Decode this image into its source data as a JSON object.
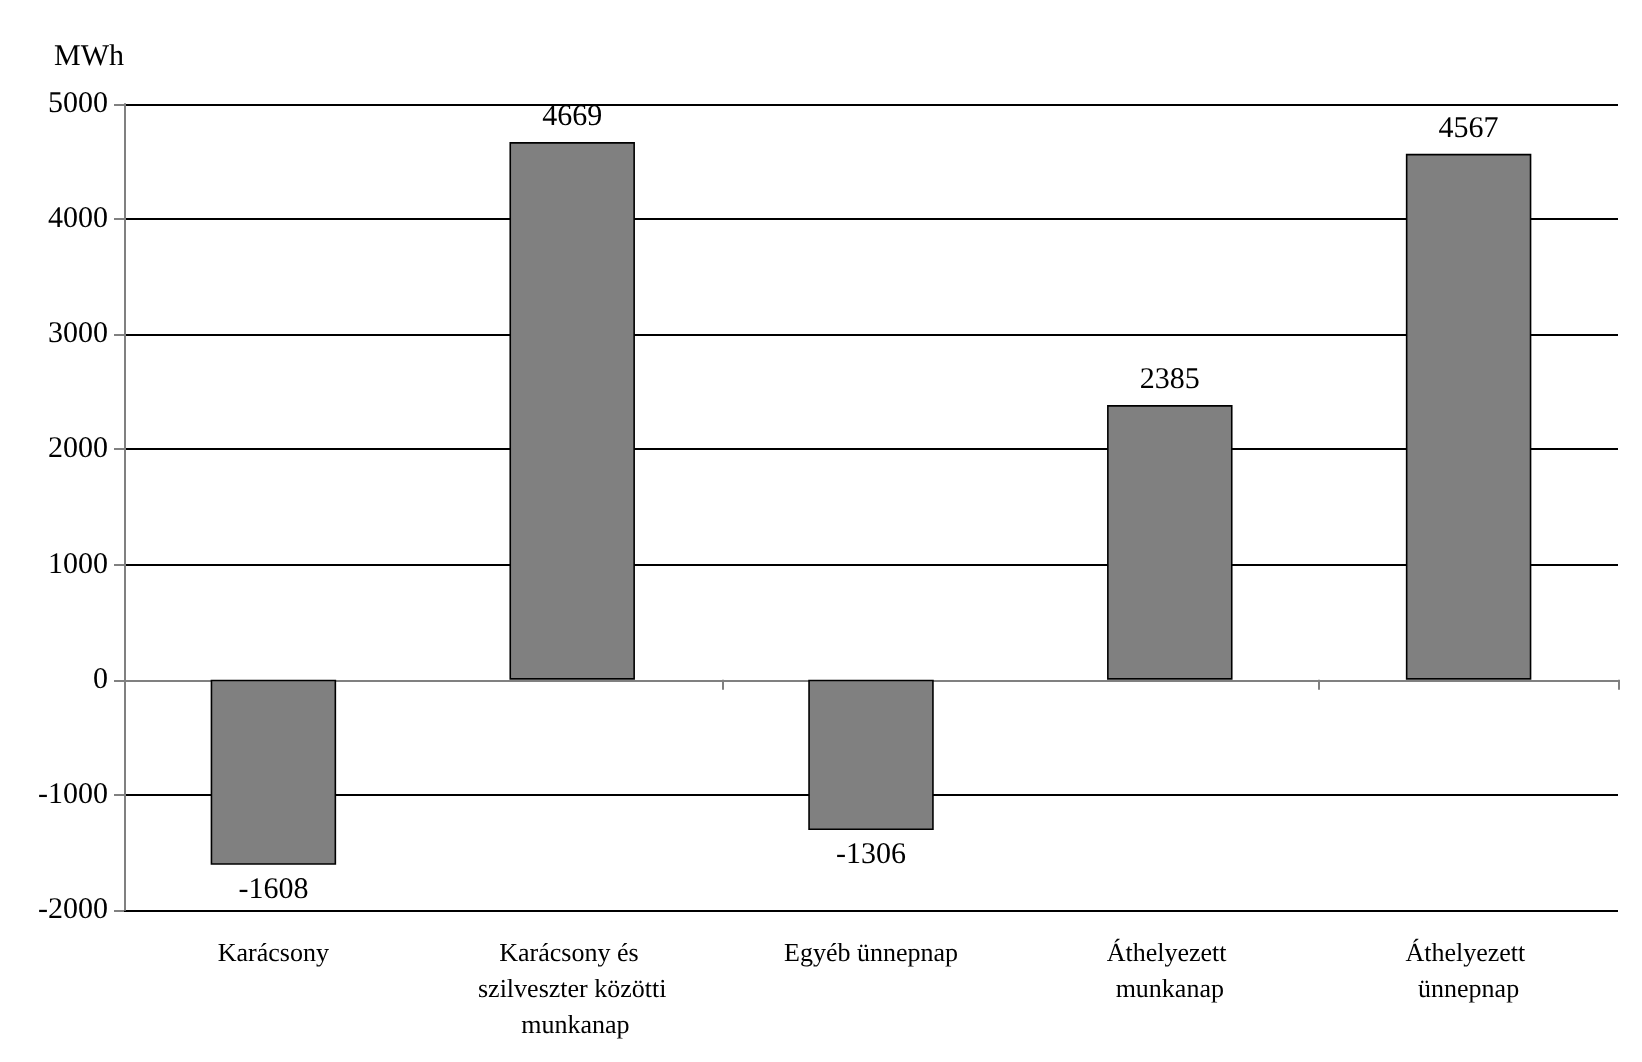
{
  "chart_data": {
    "type": "bar",
    "ylabel": "MWh",
    "categories": [
      "Karácsony",
      "Karácsony és szilveszter közötti munkanap",
      "Egyéb ünnepnap",
      "Áthelyezett munkanap",
      "Áthelyezett ünnepnap"
    ],
    "values": [
      -1608,
      4669,
      -1306,
      2385,
      4567
    ],
    "color": "#808080",
    "ylim": [
      -2000,
      5000
    ],
    "yticks": [
      -2000,
      -1000,
      0,
      1000,
      2000,
      3000,
      4000,
      5000
    ],
    "grid": "y",
    "data_labels": true
  }
}
